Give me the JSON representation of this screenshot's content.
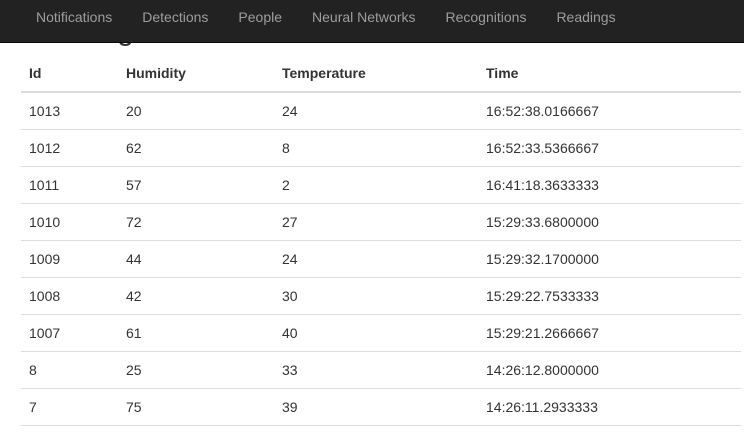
{
  "page": {
    "heading": "Readings"
  },
  "nav": {
    "items": [
      {
        "label": "Notifications"
      },
      {
        "label": "Detections"
      },
      {
        "label": "People"
      },
      {
        "label": "Neural Networks"
      },
      {
        "label": "Recognitions"
      },
      {
        "label": "Readings"
      }
    ]
  },
  "table": {
    "headers": {
      "id": "Id",
      "humidity": "Humidity",
      "temperature": "Temperature",
      "time": "Time"
    },
    "rows": [
      {
        "id": "1013",
        "humidity": "20",
        "temperature": "24",
        "time": "16:52:38.0166667"
      },
      {
        "id": "1012",
        "humidity": "62",
        "temperature": "8",
        "time": "16:52:33.5366667"
      },
      {
        "id": "1011",
        "humidity": "57",
        "temperature": "2",
        "time": "16:41:18.3633333"
      },
      {
        "id": "1010",
        "humidity": "72",
        "temperature": "27",
        "time": "15:29:33.6800000"
      },
      {
        "id": "1009",
        "humidity": "44",
        "temperature": "24",
        "time": "15:29:32.1700000"
      },
      {
        "id": "1008",
        "humidity": "42",
        "temperature": "30",
        "time": "15:29:22.7533333"
      },
      {
        "id": "1007",
        "humidity": "61",
        "temperature": "40",
        "time": "15:29:21.2666667"
      },
      {
        "id": "8",
        "humidity": "25",
        "temperature": "33",
        "time": "14:26:12.8000000"
      },
      {
        "id": "7",
        "humidity": "75",
        "temperature": "39",
        "time": "14:26:11.2933333"
      }
    ]
  }
}
